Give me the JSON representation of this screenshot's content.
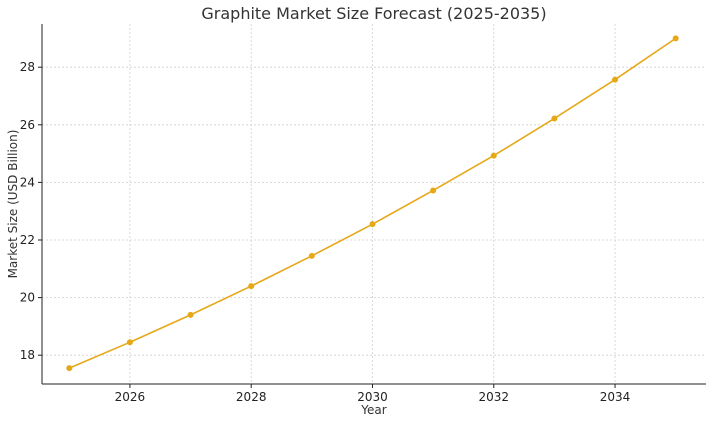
{
  "chart_data": {
    "type": "line",
    "title": "Graphite Market Size Forecast (2025-2035)",
    "xlabel": "Year",
    "ylabel": "Market Size (USD Billion)",
    "xlim": [
      2024.55,
      2035.5
    ],
    "ylim": [
      17.0,
      29.5
    ],
    "xticks": [
      2026,
      2028,
      2030,
      2032,
      2034
    ],
    "yticks": [
      18,
      20,
      22,
      24,
      26,
      28
    ],
    "grid": true,
    "series": [
      {
        "color": "#e6a817",
        "x": [
          2025,
          2026,
          2027,
          2028,
          2029,
          2030,
          2031,
          2032,
          2033,
          2034,
          2035
        ],
        "values": [
          17.55,
          18.45,
          19.4,
          20.4,
          21.45,
          22.55,
          23.72,
          24.93,
          26.22,
          27.57,
          29.0
        ]
      }
    ]
  }
}
